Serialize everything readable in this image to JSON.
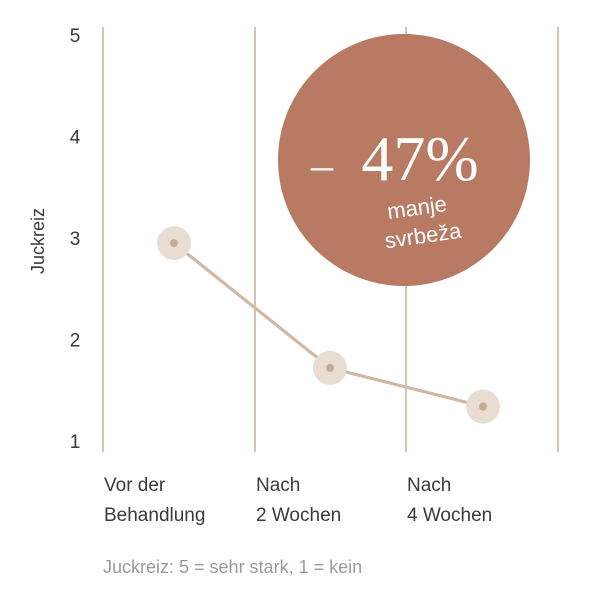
{
  "chart_data": {
    "type": "line",
    "categories": [
      [
        "Vor der",
        "Behandlung"
      ],
      [
        "Nach",
        "2 Wochen"
      ],
      [
        "Nach",
        "4 Wochen"
      ]
    ],
    "values": [
      2.95,
      1.72,
      1.34
    ],
    "ylabel": "Juckreiz",
    "ylim": [
      1,
      5
    ],
    "yticks": [
      1,
      2,
      3,
      4,
      5
    ],
    "grid": "vertical",
    "footnote": "Juckreiz: 5 = sehr stark, 1 = kein",
    "annotation": {
      "value_sign": "–",
      "value": "47%",
      "caption_line1": "manje",
      "caption_line2": "svrbeža"
    }
  },
  "colors": {
    "line": "#cfb9a3",
    "marker_halo": "#e8ddd3",
    "marker_dot": "#c4ab94",
    "grid": "#c9b59f",
    "badge": "#b87a63"
  }
}
